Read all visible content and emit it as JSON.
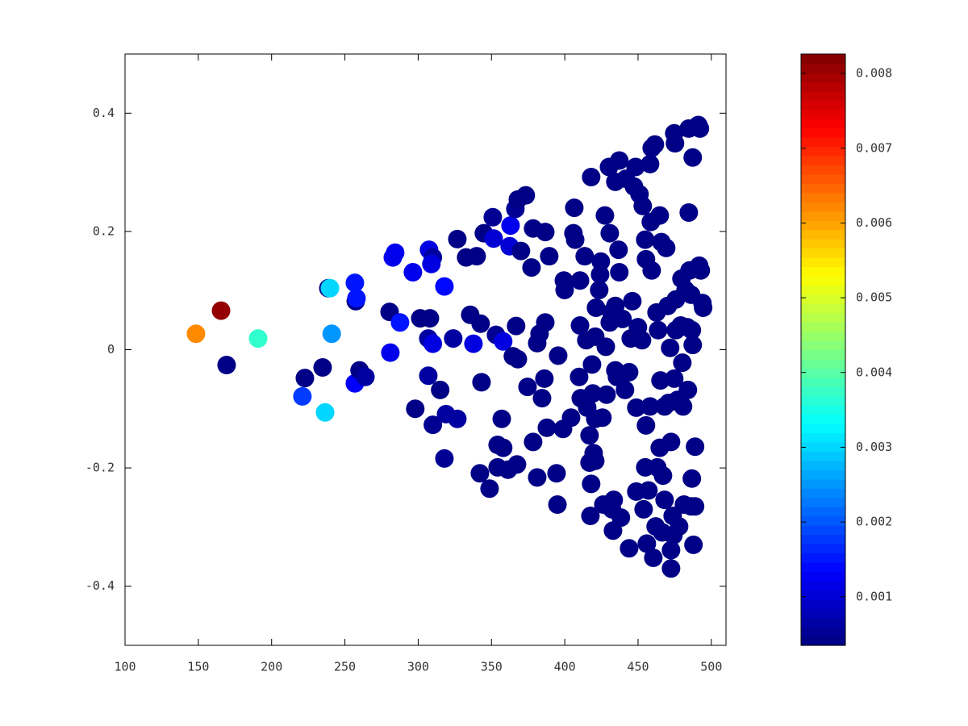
{
  "chart_data": {
    "type": "scatter",
    "colormap": "jet",
    "xlim": [
      100,
      510
    ],
    "ylim": [
      -0.5,
      0.5
    ],
    "xticks": [
      100,
      150,
      200,
      250,
      300,
      350,
      400,
      450,
      500
    ],
    "yticks": [
      -0.4,
      -0.2,
      0,
      0.2,
      0.4
    ],
    "clim": [
      0.00035,
      0.00826
    ],
    "cticks": [
      0.001,
      0.002,
      0.003,
      0.004,
      0.005,
      0.006,
      0.007,
      0.008
    ],
    "x": [
      148.4,
      165.5,
      169.3,
      190.8,
      222.7,
      221,
      234.8,
      236.5,
      238.7,
      239.8,
      241,
      256.8,
      257.4,
      257.9,
      256.8,
      260,
      264,
      280.5,
      281,
      282.7,
      284.3,
      287.6,
      296.4,
      298,
      301.4,
      308,
      307.4,
      310,
      309,
      306.9,
      310,
      306.9,
      310,
      315,
      317.9,
      319,
      317.9,
      323.9,
      326.7,
      326.7,
      332.7,
      335.5,
      337.7,
      339.9,
      342.6,
      343.2,
      342.1,
      344.8,
      348.7,
      350.9,
      351.5,
      353.1,
      354.2,
      354.2,
      357,
      358,
      358,
      361.3,
      362.4,
      363,
      364.6,
      366.3,
      367.4,
      366.8,
      368,
      368,
      370.1,
      373.4,
      374.6,
      377.3,
      378.4,
      378.4,
      381.2,
      381.2,
      382.8,
      384.5,
      386.1,
      386.7,
      386.7,
      387.8,
      389.4,
      394.4,
      395,
      395.5,
      398.8,
      399.4,
      399.9,
      404.3,
      405.9,
      406.5,
      407.1,
      410.4,
      410.4,
      409.8,
      410.9,
      413.6,
      414.7,
      415.3,
      416.9,
      416.9,
      418,
      418.6,
      418,
      417.5,
      419.1,
      421.3,
      420.8,
      420.8,
      419.7,
      420.8,
      423.5,
      424.1,
      424.6,
      426.3,
      425.7,
      427.4,
      428,
      428.5,
      430.2,
      430.7,
      430.7,
      431.8,
      432.3,
      432.9,
      433.4,
      434.5,
      434.5,
      434.5,
      435.6,
      437.2,
      437.2,
      436.7,
      438.3,
      439.4,
      441.1,
      441.7,
      443.9,
      443.9,
      445,
      446.1,
      447.2,
      448.3,
      448.8,
      448.8,
      449.9,
      451,
      452.7,
      453.2,
      453.8,
      454.9,
      455.4,
      455.4,
      454.9,
      456,
      457.1,
      458.2,
      458.2,
      458.7,
      459.3,
      459.3,
      460.4,
      461.5,
      462,
      462.6,
      463.1,
      463.7,
      464.8,
      464.8,
      465.3,
      465.9,
      466.5,
      467,
      468.1,
      468.1,
      469.2,
      470.3,
      470.8,
      471.9,
      472.5,
      472.5,
      472.5,
      473.6,
      474.1,
      474.7,
      474.7,
      475.2,
      475.8,
      475.8,
      476.9,
      478,
      479.1,
      479.6,
      480.2,
      480.7,
      481.3,
      482.4,
      483.5,
      484,
      484.6,
      484.6,
      485.1,
      486.2,
      486.2,
      486.7,
      486.7,
      487.3,
      487.3,
      487.8,
      488.9,
      488.9,
      491.1,
      491.7,
      492.2,
      492.8,
      493.9,
      494.4
    ],
    "values": [
      0.027,
      0.066,
      -0.026,
      0.019,
      -0.048,
      -0.079,
      -0.03,
      -0.106,
      0.104,
      0.104,
      0.027,
      0.113,
      0.082,
      0.087,
      -0.057,
      -0.035,
      -0.046,
      0.064,
      -0.005,
      0.156,
      0.164,
      0.046,
      0.131,
      -0.1,
      0.053,
      0.053,
      0.169,
      0.156,
      0.145,
      0.019,
      0.01,
      -0.044,
      -0.127,
      -0.068,
      0.107,
      -0.109,
      -0.184,
      0.019,
      -0.117,
      0.187,
      0.156,
      0.059,
      0.01,
      0.158,
      0.044,
      -0.055,
      -0.209,
      0.197,
      -0.235,
      0.224,
      0.188,
      0.025,
      -0.161,
      -0.199,
      -0.117,
      0.014,
      -0.166,
      -0.203,
      0.175,
      0.21,
      -0.011,
      0.238,
      -0.194,
      0.04,
      -0.016,
      0.254,
      0.167,
      0.261,
      -0.063,
      0.139,
      0.205,
      -0.156,
      0.011,
      -0.216,
      0.027,
      -0.082,
      -0.049,
      0.199,
      0.046,
      -0.132,
      0.158,
      -0.209,
      -0.262,
      -0.01,
      -0.134,
      0.117,
      0.101,
      -0.115,
      0.197,
      0.24,
      0.186,
      0.117,
      0.041,
      -0.046,
      -0.082,
      0.158,
      0.016,
      -0.098,
      -0.145,
      -0.191,
      0.292,
      -0.025,
      -0.227,
      -0.281,
      -0.074,
      0.071,
      0.022,
      -0.117,
      -0.175,
      -0.188,
      0.101,
      0.127,
      0.149,
      -0.262,
      -0.115,
      0.227,
      0.005,
      -0.076,
      0.309,
      0.197,
      0.046,
      0.063,
      -0.27,
      -0.306,
      -0.254,
      0.284,
      0.074,
      -0.035,
      -0.046,
      0.32,
      0.131,
      0.169,
      -0.284,
      0.052,
      -0.068,
      0.289,
      -0.336,
      -0.038,
      0.019,
      0.082,
      0.276,
      0.309,
      -0.098,
      -0.24,
      0.038,
      0.263,
      0.016,
      0.243,
      -0.27,
      0.186,
      0.153,
      -0.128,
      -0.199,
      -0.328,
      -0.238,
      -0.096,
      0.314,
      0.216,
      0.134,
      0.341,
      -0.352,
      0.347,
      -0.299,
      0.063,
      -0.199,
      0.033,
      0.227,
      -0.166,
      -0.052,
      0.182,
      -0.309,
      -0.213,
      -0.254,
      -0.096,
      0.172,
      0.074,
      -0.09,
      0.003,
      -0.339,
      -0.37,
      -0.156,
      -0.281,
      -0.314,
      0.366,
      -0.049,
      0.349,
      0.033,
      0.085,
      -0.085,
      -0.299,
      0.041,
      0.12,
      -0.022,
      -0.096,
      -0.262,
      0.101,
      0.038,
      -0.068,
      0.374,
      0.232,
      0.134,
      0.093,
      -0.265,
      -0.218,
      0.033,
      0.008,
      0.325,
      -0.33,
      -0.164,
      -0.265,
      0.38,
      0.142,
      0.374,
      0.134,
      0.079,
      0.071
    ],
    "color_values": [
      0.0062,
      0.0081,
      0.0004,
      0.0037,
      0.0004,
      0.0018,
      0.0004,
      0.003,
      0.0004,
      0.003,
      0.0025,
      0.0015,
      0.0004,
      0.0015,
      0.0013,
      0.0004,
      0.0006,
      0.0004,
      0.0012,
      0.0012,
      0.0012,
      0.0015,
      0.0012,
      0.0004,
      0.0004,
      0.0004,
      0.0011,
      0.0006,
      0.0011,
      0.0006,
      0.0011,
      0.0006,
      0.0005,
      0.0004,
      0.0014,
      0.0006,
      0.0005,
      0.0006,
      0.0006,
      0.0004,
      0.0004,
      0.0004,
      0.0011,
      0.0004,
      0.0004,
      0.0004,
      0.0004,
      0.0004,
      0.0004,
      0.0005,
      0.001,
      0.0005,
      0.0004,
      0.0004,
      0.0004,
      0.0011,
      0.0004,
      0.0004,
      0.001,
      0.0012,
      0.0004,
      0.0005,
      0.0004,
      0.0004,
      0.0004,
      0.0004,
      0.0004,
      0.0004,
      0.0004,
      0.0004,
      0.0004,
      0.0004,
      0.0004,
      0.0004,
      0.0004,
      0.0004,
      0.0004,
      0.0004,
      0.0004,
      0.0004,
      0.0004,
      0.0004,
      0.0004,
      0.0004,
      0.0004,
      0.0004,
      0.0004,
      0.0004,
      0.0004,
      0.0004,
      0.0004,
      0.0004,
      0.0004,
      0.0004,
      0.0004,
      0.0004,
      0.0004,
      0.0004,
      0.0004,
      0.0004,
      0.0004,
      0.0004,
      0.0004,
      0.0004,
      0.0004,
      0.0004,
      0.0004,
      0.0004,
      0.0004,
      0.0004,
      0.0004,
      0.0004,
      0.0004,
      0.0004,
      0.0004,
      0.0004,
      0.0004,
      0.0004,
      0.0004,
      0.0004,
      0.0004,
      0.0004,
      0.0004,
      0.0004,
      0.0004,
      0.0004,
      0.0004,
      0.0004,
      0.0004,
      0.0004,
      0.0004,
      0.0004,
      0.0004,
      0.0004,
      0.0004,
      0.0004,
      0.0004,
      0.0004,
      0.0004,
      0.0004,
      0.0004,
      0.0004,
      0.0004,
      0.0004,
      0.0004,
      0.0004,
      0.0004,
      0.0004,
      0.0004,
      0.0004,
      0.0004,
      0.0004,
      0.0004,
      0.0004,
      0.0004,
      0.0004,
      0.0004,
      0.0004,
      0.0004,
      0.0004,
      0.0004,
      0.0004,
      0.0004,
      0.0004,
      0.0004,
      0.0004,
      0.0004,
      0.0004,
      0.0004,
      0.0004,
      0.0004,
      0.0004,
      0.0004,
      0.0004,
      0.0004,
      0.0004,
      0.0004,
      0.0004,
      0.0004,
      0.0004,
      0.0004,
      0.0004,
      0.0004,
      0.0004,
      0.0004,
      0.0004,
      0.0004,
      0.0004,
      0.0004,
      0.0004,
      0.0004,
      0.0004,
      0.0004,
      0.0004,
      0.0004,
      0.0004,
      0.0004,
      0.0004,
      0.0004,
      0.0004,
      0.0004,
      0.0004,
      0.0004,
      0.0004,
      0.0004,
      0.0004,
      0.0004,
      0.0004,
      0.0004,
      0.0004,
      0.0004,
      0.0004,
      0.0004,
      0.0004,
      0.0004,
      0.0004
    ]
  }
}
